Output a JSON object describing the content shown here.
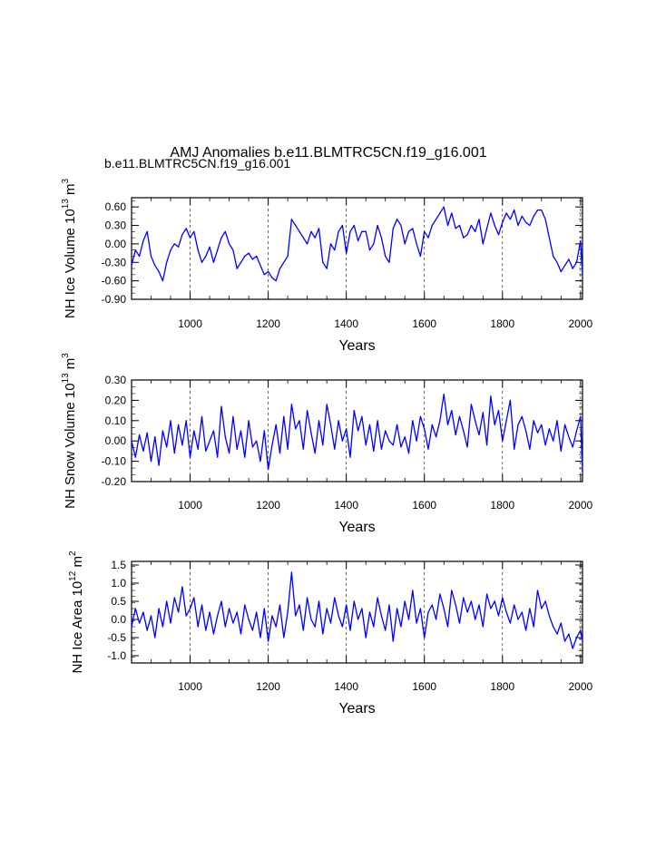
{
  "figure": {
    "title": "AMJ Anomalies b.e11.BLMTRC5CN.f19_g16.001",
    "subtitle": "b.e11.BLMTRC5CN.f19_g16.001",
    "subtitle_color": "#0000ff",
    "line_color": "#0000ff"
  },
  "chart_data": [
    {
      "type": "line",
      "xlabel": "Years",
      "ylabel": {
        "text": "NH Ice Volume 10",
        "exp1": "13",
        "unit": " m",
        "exp2": "3"
      },
      "xlim": [
        850,
        2005
      ],
      "ylim": [
        -0.9,
        0.75
      ],
      "xticks": [
        1000,
        1200,
        1400,
        1600,
        1800,
        2000
      ],
      "xtick_labels": [
        "1000",
        "1200",
        "1400",
        "1600",
        "1800",
        "2000"
      ],
      "yticks": [
        -0.9,
        -0.6,
        -0.3,
        0.0,
        0.3,
        0.6
      ],
      "ytick_labels": [
        "-0.90",
        "-0.60",
        "-0.30",
        "0.00",
        "0.30",
        "0.60"
      ],
      "vlines": [
        1000,
        1200,
        1400,
        1600,
        1800,
        2000
      ],
      "series": [
        {
          "name": "NH Ice Volume",
          "x": [
            850,
            860,
            870,
            880,
            890,
            900,
            910,
            920,
            930,
            940,
            950,
            960,
            970,
            980,
            990,
            1000,
            1010,
            1020,
            1030,
            1040,
            1050,
            1060,
            1070,
            1080,
            1090,
            1100,
            1110,
            1120,
            1130,
            1140,
            1150,
            1160,
            1170,
            1180,
            1190,
            1200,
            1210,
            1220,
            1230,
            1240,
            1250,
            1260,
            1270,
            1280,
            1290,
            1300,
            1310,
            1320,
            1330,
            1340,
            1350,
            1360,
            1370,
            1380,
            1390,
            1400,
            1410,
            1420,
            1430,
            1440,
            1450,
            1460,
            1470,
            1480,
            1490,
            1500,
            1510,
            1520,
            1530,
            1540,
            1550,
            1560,
            1570,
            1580,
            1590,
            1600,
            1610,
            1620,
            1630,
            1640,
            1650,
            1660,
            1670,
            1680,
            1690,
            1700,
            1710,
            1720,
            1730,
            1740,
            1750,
            1760,
            1770,
            1780,
            1790,
            1800,
            1810,
            1820,
            1830,
            1840,
            1850,
            1860,
            1870,
            1880,
            1890,
            1900,
            1910,
            1920,
            1930,
            1940,
            1950,
            1960,
            1970,
            1980,
            1990,
            2000,
            2005
          ],
          "y": [
            -0.35,
            -0.1,
            -0.2,
            0.05,
            0.2,
            -0.2,
            -0.35,
            -0.45,
            -0.6,
            -0.3,
            -0.1,
            0.0,
            -0.05,
            0.15,
            0.25,
            0.1,
            0.2,
            -0.1,
            -0.3,
            -0.2,
            -0.05,
            -0.3,
            -0.1,
            0.1,
            0.2,
            0.0,
            -0.1,
            -0.4,
            -0.3,
            -0.2,
            -0.15,
            -0.25,
            -0.2,
            -0.35,
            -0.5,
            -0.45,
            -0.55,
            -0.6,
            -0.4,
            -0.3,
            -0.2,
            0.4,
            0.3,
            0.2,
            0.1,
            0.0,
            0.2,
            0.1,
            0.25,
            -0.3,
            -0.4,
            0.0,
            -0.1,
            0.2,
            0.3,
            -0.15,
            0.2,
            0.3,
            0.05,
            0.2,
            0.2,
            -0.1,
            0.0,
            0.3,
            0.1,
            -0.2,
            -0.3,
            0.25,
            0.4,
            0.3,
            0.0,
            0.2,
            0.25,
            0.0,
            -0.2,
            0.2,
            0.1,
            0.3,
            0.4,
            0.5,
            0.6,
            0.3,
            0.5,
            0.25,
            0.3,
            0.1,
            0.15,
            0.3,
            0.2,
            0.4,
            0.0,
            0.25,
            0.5,
            0.3,
            0.15,
            0.35,
            0.5,
            0.4,
            0.55,
            0.3,
            0.45,
            0.35,
            0.3,
            0.45,
            0.55,
            0.55,
            0.4,
            0.1,
            -0.2,
            -0.3,
            -0.45,
            -0.35,
            -0.25,
            -0.4,
            -0.3,
            0.05,
            -0.5
          ]
        }
      ]
    },
    {
      "type": "line",
      "xlabel": "Years",
      "ylabel": {
        "text": "NH Snow Volume 10",
        "exp1": "13",
        "unit": " m",
        "exp2": "3"
      },
      "xlim": [
        850,
        2005
      ],
      "ylim": [
        -0.2,
        0.3
      ],
      "xticks": [
        1000,
        1200,
        1400,
        1600,
        1800,
        2000
      ],
      "xtick_labels": [
        "1000",
        "1200",
        "1400",
        "1600",
        "1800",
        "2000"
      ],
      "yticks": [
        -0.2,
        -0.1,
        0.0,
        0.1,
        0.2,
        0.3
      ],
      "ytick_labels": [
        "-0.20",
        "-0.10",
        "0.00",
        "0.10",
        "0.20",
        "0.30"
      ],
      "vlines": [
        1000,
        1200,
        1400,
        1600,
        1800,
        2000
      ],
      "series": [
        {
          "name": "NH Snow Volume",
          "x": [
            850,
            860,
            870,
            880,
            890,
            900,
            910,
            920,
            930,
            940,
            950,
            960,
            970,
            980,
            990,
            1000,
            1010,
            1020,
            1030,
            1040,
            1050,
            1060,
            1070,
            1080,
            1090,
            1100,
            1110,
            1120,
            1130,
            1140,
            1150,
            1160,
            1170,
            1180,
            1190,
            1200,
            1210,
            1220,
            1230,
            1240,
            1250,
            1260,
            1270,
            1280,
            1290,
            1300,
            1310,
            1320,
            1330,
            1340,
            1350,
            1360,
            1370,
            1380,
            1390,
            1400,
            1410,
            1420,
            1430,
            1440,
            1450,
            1460,
            1470,
            1480,
            1490,
            1500,
            1510,
            1520,
            1530,
            1540,
            1550,
            1560,
            1570,
            1580,
            1590,
            1600,
            1610,
            1620,
            1630,
            1640,
            1650,
            1660,
            1670,
            1680,
            1690,
            1700,
            1710,
            1720,
            1730,
            1740,
            1750,
            1760,
            1770,
            1780,
            1790,
            1800,
            1810,
            1820,
            1830,
            1840,
            1850,
            1860,
            1870,
            1880,
            1890,
            1900,
            1910,
            1920,
            1930,
            1940,
            1950,
            1960,
            1970,
            1980,
            1990,
            2000,
            2005
          ],
          "y": [
            0.0,
            -0.08,
            0.03,
            -0.05,
            0.04,
            -0.1,
            0.02,
            -0.12,
            0.05,
            -0.03,
            0.1,
            -0.06,
            0.08,
            -0.02,
            0.1,
            -0.08,
            0.05,
            -0.04,
            0.12,
            -0.05,
            0.0,
            0.05,
            -0.08,
            0.17,
            0.02,
            -0.06,
            0.12,
            -0.04,
            0.05,
            -0.08,
            0.1,
            -0.03,
            0.0,
            -0.1,
            0.05,
            -0.14,
            -0.02,
            0.08,
            -0.06,
            0.12,
            -0.04,
            0.18,
            0.06,
            0.1,
            -0.04,
            0.15,
            0.04,
            -0.06,
            0.1,
            -0.02,
            0.18,
            0.08,
            -0.04,
            0.1,
            0.0,
            0.06,
            -0.08,
            0.15,
            0.05,
            0.12,
            -0.02,
            0.08,
            -0.05,
            0.1,
            -0.04,
            0.05,
            0.0,
            -0.02,
            0.08,
            -0.03,
            0.02,
            -0.06,
            0.1,
            0.0,
            0.12,
            0.06,
            -0.04,
            0.08,
            0.02,
            0.1,
            0.23,
            0.08,
            0.15,
            0.03,
            0.12,
            0.05,
            -0.03,
            0.18,
            0.1,
            0.03,
            0.14,
            -0.02,
            0.22,
            0.08,
            0.15,
            0.0,
            0.1,
            0.2,
            -0.04,
            0.08,
            0.12,
            0.05,
            -0.04,
            0.1,
            0.04,
            0.08,
            -0.02,
            0.06,
            0.0,
            0.1,
            -0.05,
            0.08,
            0.02,
            -0.03,
            0.05,
            0.12,
            -0.15
          ]
        }
      ]
    },
    {
      "type": "line",
      "xlabel": "Years",
      "ylabel": {
        "text": "NH Ice Area 10",
        "exp1": "12",
        "unit": " m",
        "exp2": "2"
      },
      "xlim": [
        850,
        2005
      ],
      "ylim": [
        -1.2,
        1.6
      ],
      "xticks": [
        1000,
        1200,
        1400,
        1600,
        1800,
        2000
      ],
      "xtick_labels": [
        "1000",
        "1200",
        "1400",
        "1600",
        "1800",
        "2000"
      ],
      "yticks": [
        -1.0,
        -0.5,
        0.0,
        0.5,
        1.0,
        1.5
      ],
      "ytick_labels": [
        "-1.0",
        "-0.5",
        "0.0",
        "0.5",
        "1.0",
        "1.5"
      ],
      "vlines": [
        1000,
        1200,
        1400,
        1600,
        1800,
        2000
      ],
      "series": [
        {
          "name": "NH Ice Area",
          "x": [
            850,
            860,
            870,
            880,
            890,
            900,
            910,
            920,
            930,
            940,
            950,
            960,
            970,
            980,
            990,
            1000,
            1010,
            1020,
            1030,
            1040,
            1050,
            1060,
            1070,
            1080,
            1090,
            1100,
            1110,
            1120,
            1130,
            1140,
            1150,
            1160,
            1170,
            1180,
            1190,
            1200,
            1210,
            1220,
            1230,
            1240,
            1250,
            1260,
            1270,
            1280,
            1290,
            1300,
            1310,
            1320,
            1330,
            1340,
            1350,
            1360,
            1370,
            1380,
            1390,
            1400,
            1410,
            1420,
            1430,
            1440,
            1450,
            1460,
            1470,
            1480,
            1490,
            1500,
            1510,
            1520,
            1530,
            1540,
            1550,
            1560,
            1570,
            1580,
            1590,
            1600,
            1610,
            1620,
            1630,
            1640,
            1650,
            1660,
            1670,
            1680,
            1690,
            1700,
            1710,
            1720,
            1730,
            1740,
            1750,
            1760,
            1770,
            1780,
            1790,
            1800,
            1810,
            1820,
            1830,
            1840,
            1850,
            1860,
            1870,
            1880,
            1890,
            1900,
            1910,
            1920,
            1930,
            1940,
            1950,
            1960,
            1970,
            1980,
            1990,
            2000,
            2005
          ],
          "y": [
            -0.2,
            0.3,
            -0.1,
            0.2,
            -0.3,
            0.1,
            -0.5,
            0.3,
            -0.2,
            0.5,
            -0.1,
            0.6,
            0.2,
            0.9,
            0.1,
            0.3,
            0.6,
            -0.2,
            0.4,
            -0.3,
            0.2,
            -0.4,
            0.1,
            0.5,
            -0.2,
            0.3,
            -0.1,
            0.2,
            -0.4,
            0.4,
            0.0,
            -0.3,
            0.2,
            -0.5,
            0.3,
            -0.6,
            0.1,
            -0.2,
            0.4,
            -0.5,
            0.2,
            1.3,
            0.1,
            0.4,
            -0.3,
            0.6,
            0.0,
            -0.2,
            0.5,
            -0.4,
            0.3,
            -0.1,
            0.6,
            0.1,
            -0.2,
            0.4,
            -0.3,
            0.5,
            0.0,
            0.3,
            -0.5,
            0.2,
            -0.2,
            0.6,
            0.1,
            -0.3,
            0.4,
            -0.6,
            0.3,
            -0.2,
            0.5,
            0.0,
            0.8,
            -0.1,
            0.3,
            -0.5,
            0.2,
            0.4,
            0.0,
            0.7,
            0.3,
            -0.2,
            0.8,
            0.4,
            -0.1,
            0.6,
            0.2,
            0.5,
            0.0,
            0.4,
            -0.2,
            0.7,
            0.3,
            0.5,
            0.1,
            0.6,
            0.2,
            -0.1,
            0.4,
            0.0,
            0.2,
            -0.3,
            0.3,
            -0.2,
            0.8,
            0.3,
            0.5,
            0.1,
            -0.2,
            -0.4,
            -0.1,
            -0.6,
            -0.4,
            -0.8,
            -0.5,
            -0.3,
            -0.6
          ]
        }
      ]
    }
  ]
}
